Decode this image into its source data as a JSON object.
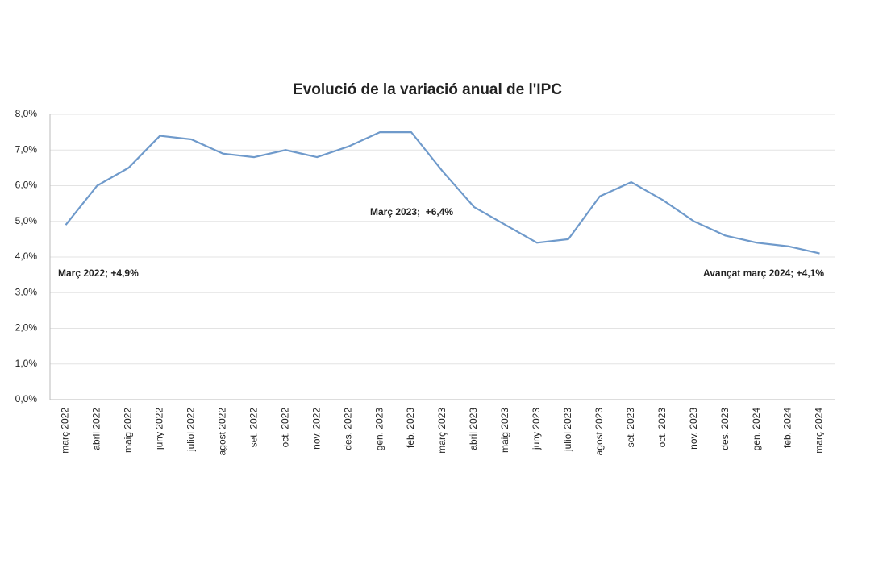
{
  "chart_data": {
    "type": "line",
    "title": "Evolució de la variació anual de l'IPC",
    "categories": [
      "març 2022",
      "abril 2022",
      "maig 2022",
      "juny 2022",
      "juliol 2022",
      "agost 2022",
      "set. 2022",
      "oct. 2022",
      "nov. 2022",
      "des. 2022",
      "gen. 2023",
      "feb. 2023",
      "març 2023",
      "abril 2023",
      "maig 2023",
      "juny 2023",
      "juliol 2023",
      "agost 2023",
      "set. 2023",
      "oct. 2023",
      "nov. 2023",
      "des. 2023",
      "gen. 2024",
      "feb. 2024",
      "març 2024"
    ],
    "values": [
      4.9,
      6.0,
      6.5,
      7.4,
      7.3,
      6.9,
      6.8,
      7.0,
      6.8,
      7.1,
      7.5,
      7.5,
      6.4,
      5.4,
      4.9,
      4.4,
      4.5,
      5.7,
      6.1,
      5.6,
      5.0,
      4.6,
      4.4,
      4.3,
      4.1
    ],
    "color": "#6f9acb",
    "ylim": [
      0,
      8
    ],
    "yticks": [
      {
        "value": 0,
        "label": "0,0%"
      },
      {
        "value": 1,
        "label": "1,0%"
      },
      {
        "value": 2,
        "label": "2,0%"
      },
      {
        "value": 3,
        "label": "3,0%"
      },
      {
        "value": 4,
        "label": "4,0%"
      },
      {
        "value": 5,
        "label": "5,0%"
      },
      {
        "value": 6,
        "label": "6,0%"
      },
      {
        "value": 7,
        "label": "7,0%"
      },
      {
        "value": 8,
        "label": "8,0%"
      }
    ],
    "grid": true,
    "annotations": [
      "Març 2022; +4,9%",
      "Març 2023;  +6,4%",
      "Avançat març 2024; +4,1%"
    ]
  }
}
